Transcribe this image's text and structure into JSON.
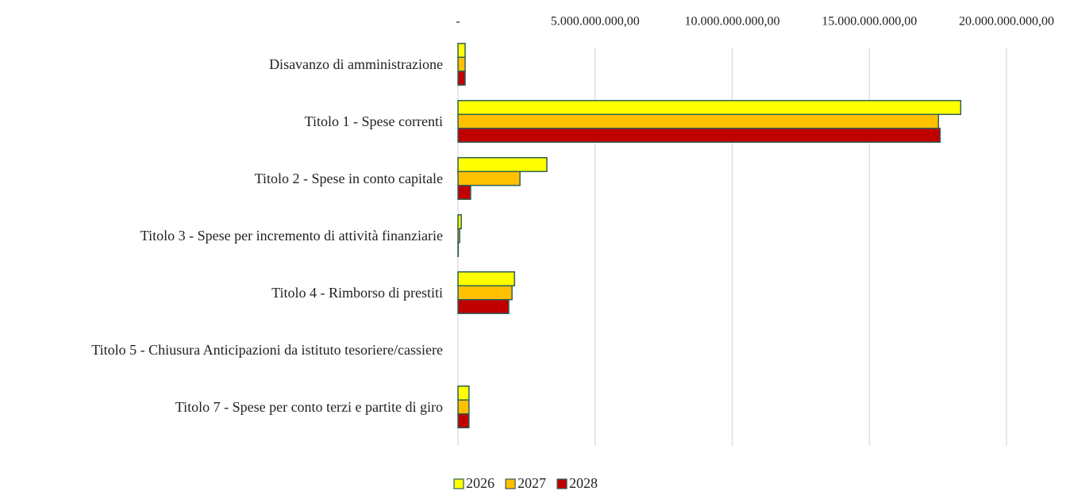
{
  "chart_data": {
    "type": "hbar",
    "categories": [
      "Disavanzo di amministrazione",
      "Titolo 1 - Spese correnti",
      "Titolo 2 - Spese in conto capitale",
      "Titolo 3 - Spese per incremento di attività finanziarie",
      "Titolo 4 - Rimborso di prestiti",
      "Titolo 5 - Chiusura Anticipazioni da istituto tesoriere/cassiere",
      "Titolo 7 - Spese per conto terzi e partite di giro"
    ],
    "series": [
      {
        "name": "2026",
        "color": "#ffff00",
        "values": [
          260000000,
          18330000000,
          3240000000,
          120000000,
          2060000000,
          0,
          400000000
        ]
      },
      {
        "name": "2027",
        "color": "#ffc000",
        "values": [
          260000000,
          17520000000,
          2260000000,
          60000000,
          1970000000,
          0,
          400000000
        ]
      },
      {
        "name": "2028",
        "color": "#c00000",
        "values": [
          260000000,
          17580000000,
          460000000,
          10000000,
          1850000000,
          0,
          400000000
        ]
      }
    ],
    "xlim": [
      0,
      20000000000
    ],
    "xticks": [
      {
        "value": 0,
        "label": "-"
      },
      {
        "value": 5000000000,
        "label": "5.000.000.000,00"
      },
      {
        "value": 10000000000,
        "label": "10.000.000.000,00"
      },
      {
        "value": 15000000000,
        "label": "15.000.000.000,00"
      },
      {
        "value": 20000000000,
        "label": "20.000.000.000,00"
      }
    ],
    "grid": true,
    "legend": "bottom"
  }
}
